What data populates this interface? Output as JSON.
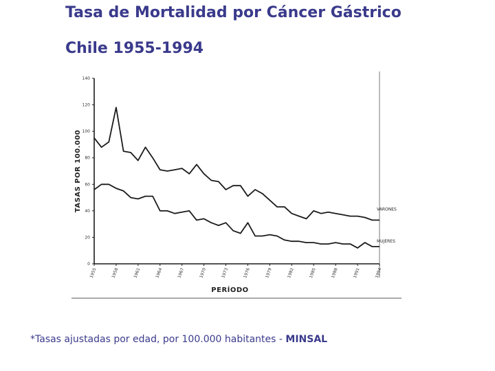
{
  "title_line1": "Tasa de Mortalidad por Cáncer Gástrico",
  "title_line2": "Chile 1955-1994",
  "footnote": {
    "text": "*Tasas ajustadas por edad, por 100.000 habitantes  - ",
    "source": "MINSAL"
  },
  "colors": {
    "title": "#3a3a8c",
    "line": "#1a1a1a"
  },
  "chart_data": {
    "type": "line",
    "title": "",
    "xlabel": "PERÍODO",
    "ylabel": "TASAS POR 100.000",
    "xlim": [
      1955,
      1994
    ],
    "ylim": [
      0,
      140
    ],
    "yticks": [
      0,
      20,
      40,
      60,
      80,
      100,
      120,
      140
    ],
    "x_tick_labels": [
      "1955",
      "1958",
      "1961",
      "1964",
      "1967",
      "1970",
      "1973",
      "1976",
      "1979",
      "1982",
      "1985",
      "1988",
      "1991",
      "1994"
    ],
    "grid": false,
    "series": [
      {
        "name": "VARONES",
        "x": [
          1955,
          1956,
          1957,
          1958,
          1959,
          1960,
          1961,
          1962,
          1963,
          1964,
          1965,
          1966,
          1967,
          1968,
          1969,
          1970,
          1971,
          1972,
          1973,
          1974,
          1975,
          1976,
          1977,
          1978,
          1979,
          1980,
          1981,
          1982,
          1983,
          1984,
          1985,
          1986,
          1987,
          1988,
          1989,
          1990,
          1991,
          1992,
          1993,
          1994
        ],
        "y": [
          95,
          88,
          92,
          118,
          85,
          84,
          78,
          88,
          80,
          71,
          70,
          71,
          72,
          68,
          75,
          68,
          63,
          62,
          56,
          59,
          59,
          51,
          56,
          53,
          48,
          43,
          43,
          38,
          36,
          34,
          40,
          38,
          39,
          38,
          37,
          36,
          36,
          35,
          33,
          33
        ]
      },
      {
        "name": "MUJERES",
        "x": [
          1955,
          1956,
          1957,
          1958,
          1959,
          1960,
          1961,
          1962,
          1963,
          1964,
          1965,
          1966,
          1967,
          1968,
          1969,
          1970,
          1971,
          1972,
          1973,
          1974,
          1975,
          1976,
          1977,
          1978,
          1979,
          1980,
          1981,
          1982,
          1983,
          1984,
          1985,
          1986,
          1987,
          1988,
          1989,
          1990,
          1991,
          1992,
          1993,
          1994
        ],
        "y": [
          56,
          60,
          60,
          57,
          55,
          50,
          49,
          51,
          51,
          40,
          40,
          38,
          39,
          40,
          33,
          34,
          31,
          29,
          31,
          25,
          23,
          31,
          21,
          21,
          22,
          21,
          18,
          17,
          17,
          16,
          16,
          15,
          15,
          16,
          15,
          15,
          12,
          16,
          13,
          13
        ]
      }
    ]
  }
}
